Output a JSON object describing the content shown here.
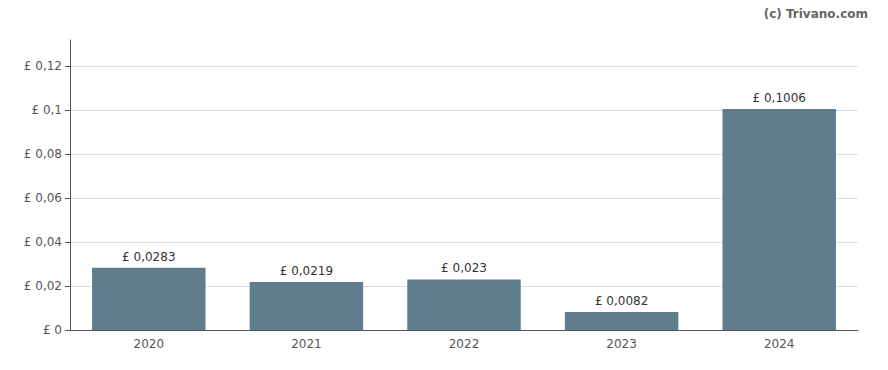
{
  "chart_data": {
    "type": "bar",
    "categories": [
      "2020",
      "2021",
      "2022",
      "2023",
      "2024"
    ],
    "values": [
      0.0283,
      0.0219,
      0.023,
      0.0082,
      0.1006
    ],
    "value_labels": [
      "£ 0,0283",
      "£ 0,0219",
      "£ 0,023",
      "£ 0,0082",
      "£ 0,1006"
    ],
    "data_labels": true,
    "color": "#5f7d8c",
    "ylim": [
      0,
      0.132
    ],
    "yticks": [
      {
        "value": 0,
        "label": "£ 0"
      },
      {
        "value": 0.02,
        "label": "£ 0,02"
      },
      {
        "value": 0.04,
        "label": "£ 0,04"
      },
      {
        "value": 0.06,
        "label": "£ 0,06"
      },
      {
        "value": 0.08,
        "label": "£ 0,08"
      },
      {
        "value": 0.1,
        "label": "£ 0,1"
      },
      {
        "value": 0.12,
        "label": "£ 0,12"
      }
    ],
    "grid": true,
    "annotations": [
      "(c) Trivano.com"
    ]
  }
}
